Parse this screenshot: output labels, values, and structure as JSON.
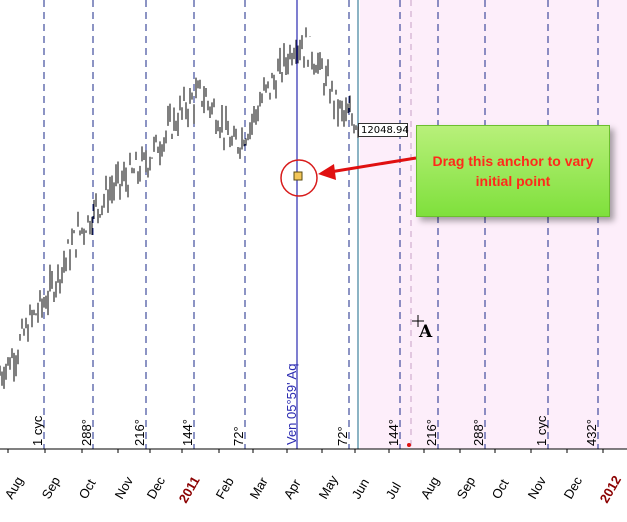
{
  "chart_data": {
    "type": "line",
    "title": "",
    "xlabel": "",
    "ylabel": "",
    "months": [
      {
        "label": "Aug",
        "year_label": false
      },
      {
        "label": "Sep",
        "year_label": false
      },
      {
        "label": "Oct",
        "year_label": false
      },
      {
        "label": "Nov",
        "year_label": false
      },
      {
        "label": "Dec",
        "year_label": false
      },
      {
        "label": "2011",
        "year_label": true
      },
      {
        "label": "Feb",
        "year_label": false
      },
      {
        "label": "Mar",
        "year_label": false
      },
      {
        "label": "Apr",
        "year_label": false
      },
      {
        "label": "May",
        "year_label": false
      },
      {
        "label": "Jun",
        "year_label": false
      },
      {
        "label": "Jul",
        "year_label": false
      },
      {
        "label": "Aug",
        "year_label": false
      },
      {
        "label": "Sep",
        "year_label": false
      },
      {
        "label": "Oct",
        "year_label": false
      },
      {
        "label": "Nov",
        "year_label": false
      },
      {
        "label": "Dec",
        "year_label": false
      },
      {
        "label": "2012",
        "year_label": true
      }
    ],
    "cycle_labels": [
      "1 cyc",
      "288°",
      "216°",
      "144°",
      "72°",
      "72°",
      "144°",
      "216°",
      "288°",
      "1 cyc",
      "432°"
    ],
    "planet_line_label": "Ven 05°59' Aq",
    "last_price_label": "12048.94",
    "price_series": [
      9700,
      9900,
      10200,
      10400,
      10700,
      11000,
      11200,
      11400,
      11500,
      11600,
      11800,
      12000,
      12200,
      12300,
      12100,
      11800,
      12000,
      12300,
      12500,
      12800,
      12700,
      12400,
      12100,
      12048.94
    ],
    "colors": {
      "cycle_line": "#1a2a8a",
      "planet_line": "#2a2ab0",
      "future_shade": "#fdeefa",
      "year_text": "#8b0000",
      "price": "#000000",
      "anchor": "#f3c65a",
      "circle": "#d81b1b",
      "arrow": "#e01010"
    }
  },
  "annotations": {
    "callout_text": "Drag this anchor to vary initial point",
    "point_label": "A"
  }
}
